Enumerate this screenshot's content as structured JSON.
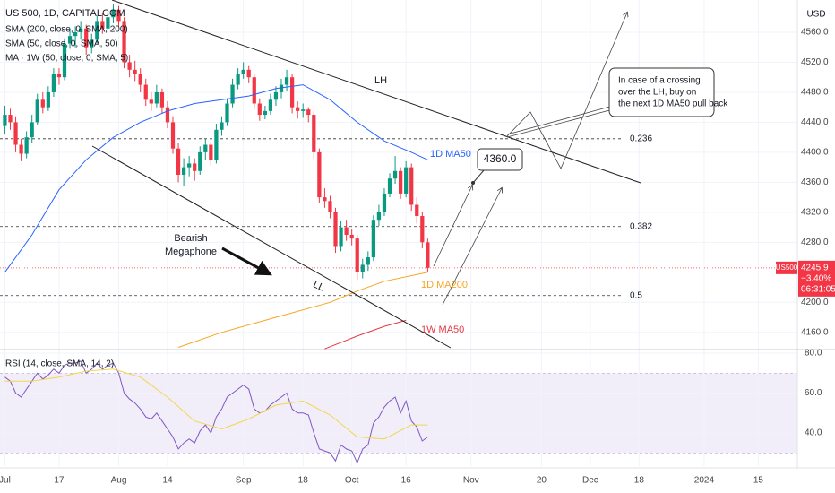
{
  "header": {
    "symbol": "US 500, 1D, CAPITALCOM",
    "indicators": [
      "SMA (200, close, 0, SMA, 200)",
      "SMA (50, close, 0, SMA, 50)",
      "MA · 1W (50, close, 0, SMA, 5)"
    ],
    "currency": "USD"
  },
  "chart_data": {
    "type": "candlestick",
    "x": [
      -10,
      -9,
      -8,
      -7,
      -6,
      -5,
      -4,
      -3,
      -2,
      -1,
      0,
      1,
      2,
      3,
      4,
      5,
      6,
      7,
      8,
      9,
      10,
      11,
      12,
      13,
      14,
      15,
      16,
      17,
      18,
      19,
      20,
      21,
      22,
      23,
      24,
      25,
      26,
      27,
      28,
      29,
      30,
      31,
      32,
      33,
      34,
      35,
      36,
      37,
      38,
      39,
      40,
      41,
      42,
      43,
      44,
      45,
      46,
      47,
      48,
      49,
      50,
      51,
      52,
      53,
      54,
      55,
      56,
      57,
      58,
      59,
      60,
      61,
      62,
      63,
      64,
      65,
      66,
      67,
      68
    ],
    "candles": [
      [
        4435,
        4462,
        4425,
        4450
      ],
      [
        4450,
        4458,
        4430,
        4440
      ],
      [
        4440,
        4448,
        4400,
        4410
      ],
      [
        4410,
        4418,
        4388,
        4398
      ],
      [
        4398,
        4428,
        4392,
        4420
      ],
      [
        4420,
        4450,
        4412,
        4440
      ],
      [
        4440,
        4478,
        4436,
        4470
      ],
      [
        4470,
        4480,
        4452,
        4460
      ],
      [
        4460,
        4488,
        4455,
        4480
      ],
      [
        4480,
        4512,
        4474,
        4505
      ],
      [
        4505,
        4512,
        4490,
        4500
      ],
      [
        4500,
        4552,
        4496,
        4545
      ],
      [
        4545,
        4565,
        4538,
        4555
      ],
      [
        4555,
        4568,
        4540,
        4560
      ],
      [
        4560,
        4575,
        4550,
        4565
      ],
      [
        4565,
        4570,
        4530,
        4540
      ],
      [
        4540,
        4558,
        4532,
        4550
      ],
      [
        4550,
        4582,
        4545,
        4575
      ],
      [
        4575,
        4585,
        4558,
        4565
      ],
      [
        4565,
        4588,
        4560,
        4580
      ],
      [
        4580,
        4598,
        4572,
        4590
      ],
      [
        4590,
        4595,
        4568,
        4575
      ],
      [
        4575,
        4580,
        4512,
        4520
      ],
      [
        4520,
        4530,
        4500,
        4510
      ],
      [
        4510,
        4522,
        4495,
        4505
      ],
      [
        4505,
        4512,
        4480,
        4490
      ],
      [
        4490,
        4498,
        4462,
        4470
      ],
      [
        4470,
        4480,
        4455,
        4465
      ],
      [
        4465,
        4490,
        4460,
        4480
      ],
      [
        4480,
        4485,
        4452,
        4460
      ],
      [
        4460,
        4468,
        4432,
        4440
      ],
      [
        4440,
        4448,
        4398,
        4405
      ],
      [
        4405,
        4412,
        4360,
        4370
      ],
      [
        4370,
        4392,
        4355,
        4380
      ],
      [
        4380,
        4395,
        4368,
        4385
      ],
      [
        4385,
        4392,
        4362,
        4375
      ],
      [
        4375,
        4408,
        4370,
        4400
      ],
      [
        4400,
        4418,
        4390,
        4410
      ],
      [
        4410,
        4415,
        4382,
        4390
      ],
      [
        4390,
        4438,
        4385,
        4430
      ],
      [
        4430,
        4448,
        4422,
        4440
      ],
      [
        4440,
        4472,
        4435,
        4465
      ],
      [
        4465,
        4498,
        4460,
        4490
      ],
      [
        4490,
        4512,
        4484,
        4505
      ],
      [
        4505,
        4520,
        4498,
        4510
      ],
      [
        4510,
        4515,
        4492,
        4500
      ],
      [
        4500,
        4505,
        4458,
        4465
      ],
      [
        4465,
        4472,
        4442,
        4450
      ],
      [
        4450,
        4462,
        4444,
        4455
      ],
      [
        4455,
        4478,
        4450,
        4470
      ],
      [
        4470,
        4488,
        4462,
        4480
      ],
      [
        4480,
        4498,
        4472,
        4490
      ],
      [
        4490,
        4510,
        4482,
        4500
      ],
      [
        4500,
        4505,
        4452,
        4460
      ],
      [
        4460,
        4468,
        4445,
        4455
      ],
      [
        4455,
        4465,
        4446,
        4457
      ],
      [
        4457,
        4460,
        4440,
        4450
      ],
      [
        4450,
        4455,
        4392,
        4400
      ],
      [
        4400,
        4405,
        4332,
        4340
      ],
      [
        4340,
        4352,
        4326,
        4335
      ],
      [
        4335,
        4342,
        4312,
        4320
      ],
      [
        4320,
        4326,
        4266,
        4275
      ],
      [
        4275,
        4308,
        4268,
        4300
      ],
      [
        4300,
        4310,
        4282,
        4290
      ],
      [
        4290,
        4298,
        4276,
        4285
      ],
      [
        4285,
        4290,
        4230,
        4240
      ],
      [
        4240,
        4258,
        4232,
        4250
      ],
      [
        4250,
        4268,
        4242,
        4260
      ],
      [
        4260,
        4316,
        4255,
        4310
      ],
      [
        4310,
        4330,
        4302,
        4320
      ],
      [
        4320,
        4352,
        4315,
        4345
      ],
      [
        4345,
        4372,
        4340,
        4365
      ],
      [
        4365,
        4395,
        4358,
        4375
      ],
      [
        4375,
        4380,
        4338,
        4345
      ],
      [
        4345,
        4388,
        4340,
        4380
      ],
      [
        4380,
        4385,
        4322,
        4330
      ],
      [
        4330,
        4340,
        4305,
        4315
      ],
      [
        4315,
        4320,
        4272,
        4280
      ],
      [
        4280,
        4285,
        4240,
        4245.9
      ]
    ],
    "up_color": "#089981",
    "down_color": "#f23645",
    "xlim": [
      -10.9,
      136.2
    ],
    "xticks": [
      {
        "value": -10,
        "label": "Jul"
      },
      {
        "value": 0,
        "label": "17"
      },
      {
        "value": 11,
        "label": "Aug"
      },
      {
        "value": 20,
        "label": "14"
      },
      {
        "value": 34,
        "label": "Sep"
      },
      {
        "value": 45,
        "label": "18"
      },
      {
        "value": 54,
        "label": "Oct"
      },
      {
        "value": 64,
        "label": "16"
      },
      {
        "value": 76,
        "label": "Nov"
      },
      {
        "value": 89,
        "label": "20"
      },
      {
        "value": 98,
        "label": "Dec"
      },
      {
        "value": 107,
        "label": "18"
      },
      {
        "value": 119,
        "label": "2024"
      },
      {
        "value": 129,
        "label": "15"
      }
    ],
    "ylim": [
      4137,
      4603
    ],
    "yticks": [
      {
        "value": 4560,
        "label": "4560.0"
      },
      {
        "value": 4520,
        "label": "4520.0"
      },
      {
        "value": 4480,
        "label": "4480.0"
      },
      {
        "value": 4440,
        "label": "4440.0"
      },
      {
        "value": 4400,
        "label": "4400.0"
      },
      {
        "value": 4360,
        "label": "4360.0"
      },
      {
        "value": 4320,
        "label": "4320.0"
      },
      {
        "value": 4280,
        "label": "4280.0"
      },
      {
        "value": 4200,
        "label": "4200.0"
      },
      {
        "value": 4160,
        "label": "4160.0"
      }
    ],
    "lines": [
      {
        "name": "1D MA50",
        "color": "#2962ff",
        "x": [
          -10,
          -5,
          0,
          5,
          10,
          15,
          20,
          25,
          30,
          35,
          40,
          45,
          50,
          55,
          60,
          65,
          68
        ],
        "values": [
          4240,
          4290,
          4350,
          4390,
          4420,
          4440,
          4455,
          4465,
          4470,
          4475,
          4485,
          4490,
          4470,
          4440,
          4415,
          4400,
          4390
        ]
      },
      {
        "name": "1D MA200",
        "color": "#f5a623",
        "x": [
          22,
          30,
          40,
          50,
          55,
          60,
          68
        ],
        "values": [
          4140,
          4160,
          4180,
          4200,
          4215,
          4228,
          4240
        ]
      },
      {
        "name": "1W MA50",
        "color": "#e53945",
        "x": [
          49,
          55,
          60,
          64
        ],
        "values": [
          4138,
          4155,
          4168,
          4176
        ]
      }
    ],
    "levels": [
      {
        "label": "0.236",
        "value": 4418
      },
      {
        "label": "0.382",
        "value": 4301
      },
      {
        "label": "0.5",
        "value": 4209
      }
    ],
    "symbol_tag": "US500",
    "change": "−3.40%",
    "countdown": "06:31:05"
  },
  "annotations": {
    "lh": "LH",
    "ll": "LL",
    "megaphone": [
      "Bearish",
      "Megaphone"
    ],
    "target": "4360.0",
    "note": [
      "In case of a crossing",
      "over the LH, buy on",
      "the next 1D MA50 pull back"
    ]
  },
  "rsi": {
    "title": "RSI (14, close, SMA, 14, 2)",
    "color": "#7e57c2",
    "ylim": [
      23.4,
      81.8
    ],
    "yticks": [
      {
        "value": 80,
        "label": "80.0"
      },
      {
        "value": 60,
        "label": "60.0"
      },
      {
        "value": 40,
        "label": "40.0"
      }
    ],
    "band": [
      30,
      70
    ],
    "values": [
      68,
      66,
      60,
      58,
      62,
      66,
      70,
      67,
      69,
      72,
      70,
      74,
      75,
      75,
      76,
      70,
      72,
      75,
      72,
      74,
      75,
      70,
      60,
      57,
      55,
      52,
      48,
      47,
      50,
      46,
      42,
      38,
      32,
      35,
      37,
      35,
      41,
      44,
      40,
      48,
      52,
      58,
      60,
      62,
      64,
      62,
      52,
      50,
      51,
      54,
      56,
      58,
      60,
      52,
      50,
      50,
      49,
      40,
      32,
      31,
      30,
      26,
      34,
      32,
      31,
      25,
      32,
      34,
      45,
      48,
      53,
      56,
      58,
      50,
      56,
      46,
      43,
      36,
      38
    ],
    "sma": {
      "color": "#f2d64b",
      "x": [
        -10,
        -5,
        0,
        5,
        10,
        15,
        20,
        25,
        30,
        35,
        40,
        45,
        50,
        55,
        60,
        65,
        68
      ],
      "values": [
        66,
        66,
        68,
        71,
        72,
        68,
        58,
        46,
        42,
        47,
        54,
        56,
        49,
        38,
        37,
        44,
        44
      ]
    }
  }
}
